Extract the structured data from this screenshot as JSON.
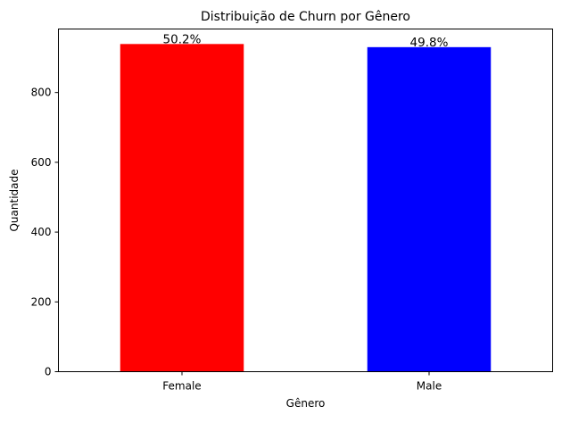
{
  "chart_data": {
    "type": "bar",
    "title": "Distribuição de Churn por Gênero",
    "xlabel": "Gênero",
    "ylabel": "Quantidade",
    "categories": [
      "Female",
      "Male"
    ],
    "values": [
      939,
      930
    ],
    "bar_labels": [
      "50.2%",
      "49.8%"
    ],
    "colors": [
      "#ff0000",
      "#0000ff"
    ],
    "ylim": [
      0,
      982
    ],
    "yticks": [
      0,
      200,
      400,
      600,
      800
    ],
    "ytick_labels": [
      "0",
      "200",
      "400",
      "600",
      "800"
    ],
    "grid": false,
    "legend": "none"
  }
}
